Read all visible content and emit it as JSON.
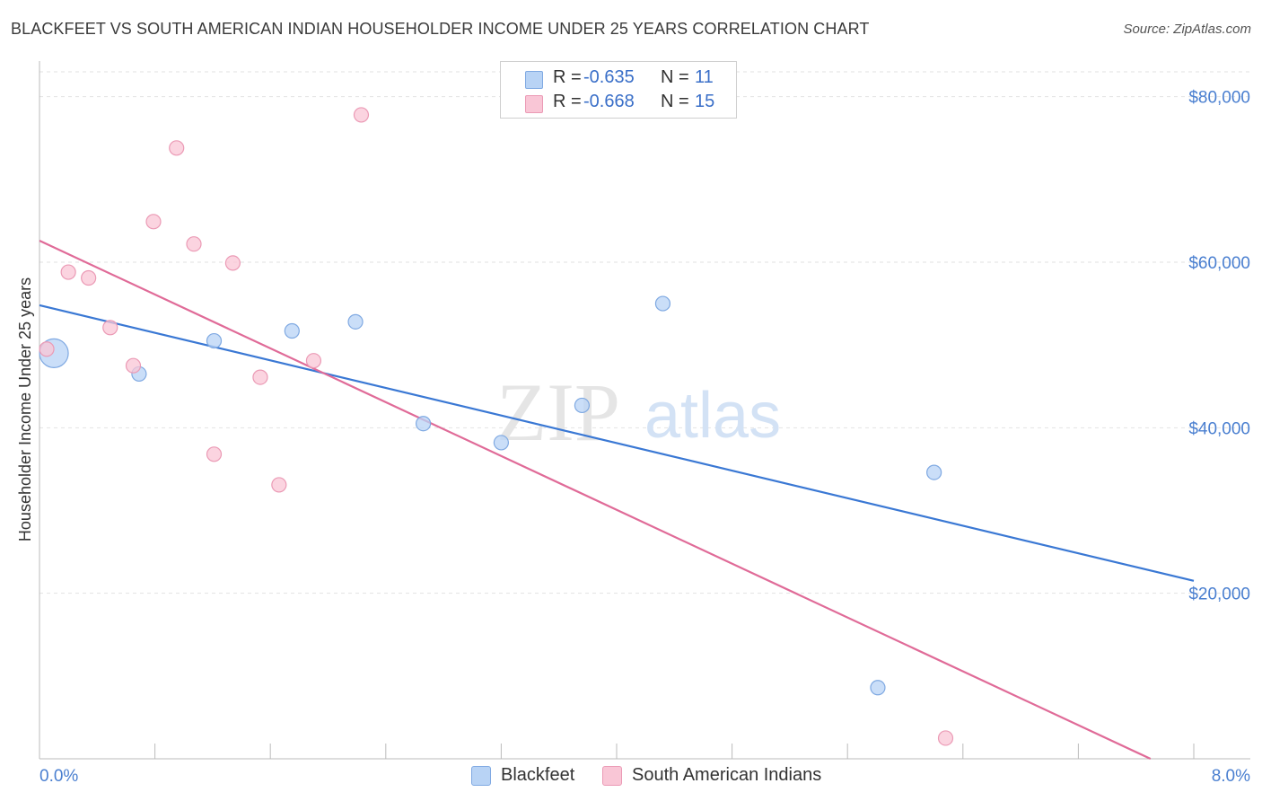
{
  "title": "BLACKFEET VS SOUTH AMERICAN INDIAN HOUSEHOLDER INCOME UNDER 25 YEARS CORRELATION CHART",
  "source": "Source: ZipAtlas.com",
  "watermark": {
    "zip": "ZIP",
    "atlas": "atlas"
  },
  "legend": {
    "rows": [
      {
        "r_label": "R =",
        "r_value": "-0.635",
        "n_label": "N =",
        "n_value": "11"
      },
      {
        "r_label": "R =",
        "r_value": "-0.668",
        "n_label": "N =",
        "n_value": "15"
      }
    ]
  },
  "bottom_legend": [
    "Blackfeet",
    "South American Indians"
  ],
  "colors": {
    "blackfeet_fill": "#b8d3f5",
    "blackfeet_stroke": "#7fa9e2",
    "blackfeet_line": "#3a78d4",
    "sai_fill": "#f9c6d6",
    "sai_stroke": "#eb9ab5",
    "sai_line": "#e06b98",
    "grid": "#e2e2e2",
    "axis": "#bbbbbb",
    "tick_text": "#4a7fd0"
  },
  "chart_data": {
    "type": "scatter",
    "title": "BLACKFEET VS SOUTH AMERICAN INDIAN HOUSEHOLDER INCOME UNDER 25 YEARS CORRELATION CHART",
    "xlabel": "",
    "ylabel": "Householder Income Under 25 years",
    "xlim": [
      0,
      8
    ],
    "ylim": [
      0,
      83000
    ],
    "x_tick_labels": [
      "0.0%",
      "8.0%"
    ],
    "y_ticks": [
      20000,
      40000,
      60000,
      80000
    ],
    "y_tick_labels": [
      "$20,000",
      "$40,000",
      "$60,000",
      "$80,000"
    ],
    "grid": true,
    "series": [
      {
        "name": "Blackfeet",
        "points": [
          {
            "x": 0.1,
            "y": 49000,
            "size": "large"
          },
          {
            "x": 0.69,
            "y": 46500
          },
          {
            "x": 1.21,
            "y": 50500
          },
          {
            "x": 1.75,
            "y": 51700
          },
          {
            "x": 2.19,
            "y": 52800
          },
          {
            "x": 2.66,
            "y": 40500
          },
          {
            "x": 3.2,
            "y": 38200
          },
          {
            "x": 3.76,
            "y": 42700
          },
          {
            "x": 4.32,
            "y": 55000
          },
          {
            "x": 5.81,
            "y": 8600
          },
          {
            "x": 6.2,
            "y": 34600
          }
        ],
        "trend": {
          "x": [
            0,
            8
          ],
          "y": [
            54800,
            21500
          ]
        }
      },
      {
        "name": "South American Indians",
        "points": [
          {
            "x": 0.05,
            "y": 49500
          },
          {
            "x": 0.2,
            "y": 58800
          },
          {
            "x": 0.34,
            "y": 58100
          },
          {
            "x": 0.49,
            "y": 52100
          },
          {
            "x": 0.65,
            "y": 47500
          },
          {
            "x": 0.79,
            "y": 64900
          },
          {
            "x": 0.95,
            "y": 73800
          },
          {
            "x": 1.07,
            "y": 62200
          },
          {
            "x": 1.21,
            "y": 36800
          },
          {
            "x": 1.34,
            "y": 59900
          },
          {
            "x": 1.53,
            "y": 46100
          },
          {
            "x": 1.66,
            "y": 33100
          },
          {
            "x": 1.9,
            "y": 48100
          },
          {
            "x": 2.23,
            "y": 77800
          },
          {
            "x": 6.28,
            "y": 2500
          }
        ],
        "trend": {
          "x": [
            0,
            7.7
          ],
          "y": [
            62600,
            0
          ]
        }
      }
    ]
  }
}
